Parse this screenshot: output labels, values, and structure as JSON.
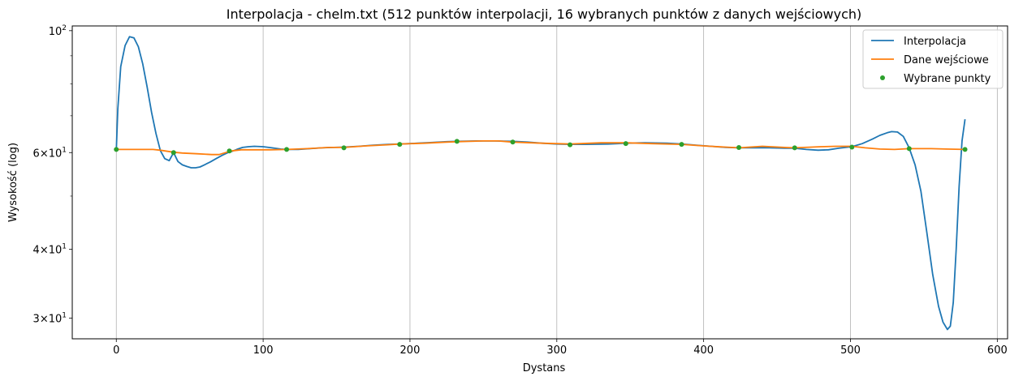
{
  "chart_data": {
    "type": "line",
    "title": "Interpolacja - chelm.txt (512 punktów interpolacji, 16 wybranych punktów z danych wejściowych)",
    "xlabel": "Dystans",
    "ylabel": "Wysokość (log)",
    "yscale": "log",
    "xlim": [
      -30,
      607
    ],
    "ylim": [
      27.5,
      102
    ],
    "grid": "vertical",
    "legend_position": "upper right",
    "x_ticks": [
      {
        "value": 0,
        "label": "0"
      },
      {
        "value": 100,
        "label": "100"
      },
      {
        "value": 200,
        "label": "200"
      },
      {
        "value": 300,
        "label": "300"
      },
      {
        "value": 400,
        "label": "400"
      },
      {
        "value": 500,
        "label": "500"
      },
      {
        "value": 600,
        "label": "600"
      }
    ],
    "y_ticks": [
      {
        "value": 100,
        "base": "10",
        "exp": "2"
      },
      {
        "value": 60,
        "base": "6×10",
        "exp": "1"
      },
      {
        "value": 40,
        "base": "4×10",
        "exp": "1"
      },
      {
        "value": 30,
        "base": "3×10",
        "exp": "1"
      }
    ],
    "y_minor_ticks": [
      50,
      70,
      80,
      90
    ],
    "series": [
      {
        "name": "Interpolacja",
        "color": "#1f77b4",
        "style": "line",
        "x": [
          0,
          1,
          3,
          6,
          9,
          12,
          15,
          18,
          21,
          24,
          27,
          30,
          33,
          36,
          39,
          42,
          45,
          48,
          51,
          54,
          57,
          60,
          64,
          68,
          72,
          76,
          78,
          82,
          86,
          90,
          94,
          100,
          106,
          112,
          116,
          124,
          132,
          140,
          148,
          155,
          165,
          175,
          185,
          193,
          205,
          215,
          225,
          232,
          245,
          258,
          270,
          280,
          290,
          300,
          309,
          320,
          335,
          347,
          360,
          375,
          385,
          395,
          405,
          415,
          424,
          435,
          445,
          455,
          462,
          470,
          478,
          485,
          492,
          501,
          508,
          515,
          520,
          525,
          528,
          532,
          536,
          540,
          544,
          548,
          552,
          556,
          560,
          563,
          566,
          568,
          570,
          572,
          574,
          576,
          578
        ],
        "y": [
          60.8,
          72,
          86,
          94,
          97.5,
          97,
          93.5,
          87,
          79,
          71,
          65,
          60.5,
          58.5,
          58,
          60,
          57.8,
          57,
          56.6,
          56.3,
          56.3,
          56.5,
          57,
          57.7,
          58.5,
          59.3,
          60,
          60.2,
          60.8,
          61.3,
          61.5,
          61.6,
          61.5,
          61.2,
          60.9,
          60.8,
          60.8,
          61,
          61.2,
          61.3,
          61.4,
          61.6,
          61.9,
          62.1,
          62.2,
          62.4,
          62.6,
          62.8,
          62.9,
          63,
          63,
          62.9,
          62.7,
          62.4,
          62.2,
          62.1,
          62.1,
          62.2,
          62.4,
          62.5,
          62.4,
          62.2,
          61.9,
          61.6,
          61.3,
          61.2,
          61.2,
          61.2,
          61.1,
          61.1,
          60.8,
          60.6,
          60.7,
          61.1,
          61.5,
          62.3,
          63.5,
          64.5,
          65.2,
          65.5,
          65.4,
          64.2,
          61.2,
          57,
          51,
          43,
          36,
          31.5,
          29.5,
          28.6,
          29,
          32,
          40,
          52,
          63,
          69
        ]
      },
      {
        "name": "Dane wejściowe",
        "color": "#ff7f0e",
        "style": "line",
        "x": [
          0,
          10,
          20,
          25,
          30,
          39,
          45,
          55,
          65,
          70,
          78,
          85,
          95,
          105,
          116,
          130,
          145,
          155,
          170,
          185,
          193,
          210,
          225,
          232,
          250,
          260,
          270,
          290,
          309,
          330,
          347,
          365,
          385,
          400,
          415,
          424,
          440,
          455,
          462,
          480,
          490,
          501,
          510,
          520,
          530,
          540,
          555,
          565,
          578
        ],
        "y": [
          60.8,
          60.8,
          60.8,
          60.8,
          60.6,
          60.1,
          59.9,
          59.7,
          59.5,
          59.5,
          60.4,
          60.7,
          60.7,
          60.7,
          60.8,
          61.0,
          61.3,
          61.3,
          61.7,
          62.0,
          62.2,
          62.4,
          62.7,
          62.8,
          63.0,
          63.0,
          62.7,
          62.4,
          62.2,
          62.5,
          62.5,
          62.3,
          62.1,
          61.7,
          61.4,
          61.2,
          61.6,
          61.3,
          61.2,
          61.5,
          61.6,
          61.6,
          61.2,
          60.9,
          60.8,
          61.0,
          61.0,
          60.9,
          60.8
        ]
      },
      {
        "name": "Wybrane punkty",
        "color": "#2ca02c",
        "style": "points",
        "x": [
          0,
          39,
          77,
          116,
          155,
          193,
          232,
          270,
          309,
          347,
          385,
          424,
          462,
          501,
          540,
          578
        ],
        "y": [
          60.8,
          60.0,
          60.4,
          60.8,
          61.2,
          62.1,
          62.9,
          62.7,
          62.0,
          62.3,
          62.1,
          61.3,
          61.2,
          61.4,
          61.0,
          60.8
        ]
      }
    ]
  }
}
